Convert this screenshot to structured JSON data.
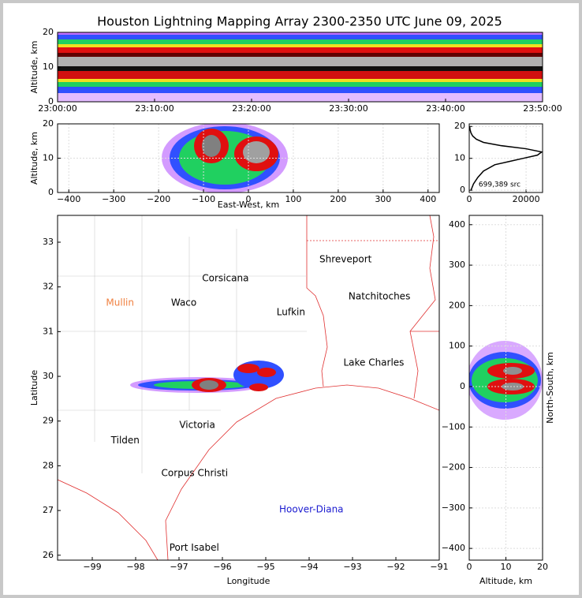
{
  "title": "Houston Lightning Mapping Array 2300-2350 UTC June 09, 2025",
  "chart_data": [
    {
      "type": "density",
      "ylabel": "Altitude, km",
      "xlim": [
        0,
        50
      ],
      "ylim": [
        0,
        20
      ],
      "xticks": [
        {
          "value": 0,
          "label": "23:00:00"
        },
        {
          "value": 10,
          "label": "23:10:00"
        },
        {
          "value": 20,
          "label": "23:20:00"
        },
        {
          "value": 30,
          "label": "23:30:00"
        },
        {
          "value": 40,
          "label": "23:40:00"
        },
        {
          "value": 50,
          "label": "23:50:00"
        }
      ],
      "yticks": [
        0,
        10,
        20
      ],
      "grid": false
    },
    {
      "type": "density",
      "xlabel": "East-West, km",
      "ylabel": "Altitude, km",
      "xlim": [
        -425,
        425
      ],
      "ylim": [
        0,
        20
      ],
      "xticks": [
        {
          "value": -400,
          "label": "−400"
        },
        {
          "value": -300,
          "label": "−300"
        },
        {
          "value": -200,
          "label": "−200"
        },
        {
          "value": -100,
          "label": "−100"
        },
        0,
        100,
        200,
        300,
        400
      ],
      "yticks": [
        0,
        10,
        20
      ],
      "grid": true
    },
    {
      "type": "line",
      "xlim": [
        0,
        25800
      ],
      "ylim": [
        -0.7,
        20.8
      ],
      "xticks": [
        0,
        20000
      ],
      "yticks": [
        0,
        10,
        20
      ],
      "grid": true,
      "annotation": "699,389 src",
      "x": [
        0,
        2,
        4,
        6,
        8,
        9,
        10,
        11,
        12,
        13,
        14,
        15,
        16,
        17,
        18,
        19,
        20
      ],
      "series": [
        {
          "color": "#000000",
          "values": [
            600,
            1500,
            3000,
            5000,
            9000,
            14000,
            19000,
            24000,
            25500,
            20000,
            11000,
            5000,
            2500,
            1200,
            600,
            300,
            150
          ]
        }
      ]
    },
    {
      "type": "map",
      "xlabel": "Longitude",
      "ylabel": "Latitude",
      "xlim": [
        -99.8,
        -91
      ],
      "ylim": [
        25.89,
        33.6
      ],
      "xticks": [
        {
          "value": -99,
          "label": "−99"
        },
        {
          "value": -98,
          "label": "−98"
        },
        {
          "value": -97,
          "label": "−97"
        },
        {
          "value": -96,
          "label": "−96"
        },
        {
          "value": -95,
          "label": "−95"
        },
        {
          "value": -94,
          "label": "−94"
        },
        {
          "value": -93,
          "label": "−93"
        },
        {
          "value": -92,
          "label": "−92"
        },
        {
          "value": -91,
          "label": "−91"
        }
      ],
      "yticks": [
        26,
        27,
        28,
        29,
        30,
        31,
        32,
        33
      ],
      "grid": false,
      "annotations": [
        {
          "text": "Shreveport",
          "x": -93.16,
          "y": 32.61,
          "color": "#000000"
        },
        {
          "text": "Corsicana",
          "x": -95.93,
          "y": 32.19,
          "color": "#000000"
        },
        {
          "text": "Mullin",
          "x": -98.36,
          "y": 31.64,
          "color": "#f08040"
        },
        {
          "text": "Waco",
          "x": -96.89,
          "y": 31.64,
          "color": "#000000"
        },
        {
          "text": "Natchitoches",
          "x": -92.38,
          "y": 31.78,
          "color": "#000000"
        },
        {
          "text": "Lufkin",
          "x": -94.42,
          "y": 31.43,
          "color": "#000000"
        },
        {
          "text": "Lake Charles",
          "x": -92.51,
          "y": 30.3,
          "color": "#000000"
        },
        {
          "text": "Victoria",
          "x": -96.58,
          "y": 28.91,
          "color": "#000000"
        },
        {
          "text": "Tilden",
          "x": -98.24,
          "y": 28.56,
          "color": "#000000"
        },
        {
          "text": "Corpus Christi",
          "x": -96.64,
          "y": 27.83,
          "color": "#000000"
        },
        {
          "text": "Hoover-Diana",
          "x": -93.95,
          "y": 27.02,
          "color": "#1a1ad0"
        },
        {
          "text": "Port Isabel",
          "x": -96.65,
          "y": 26.16,
          "color": "#000000"
        }
      ]
    },
    {
      "type": "density",
      "xlabel": "Altitude, km",
      "ylabel": "North-South, km",
      "xlim": [
        0,
        20
      ],
      "ylim": [
        -429,
        423
      ],
      "xticks": [
        0,
        10,
        20
      ],
      "yticks": [
        {
          "value": -400,
          "label": "−400"
        },
        {
          "value": -300,
          "label": "−300"
        },
        {
          "value": -200,
          "label": "−200"
        },
        {
          "value": -100,
          "label": "−100"
        },
        0,
        100,
        200,
        300,
        400
      ],
      "grid": true
    }
  ]
}
